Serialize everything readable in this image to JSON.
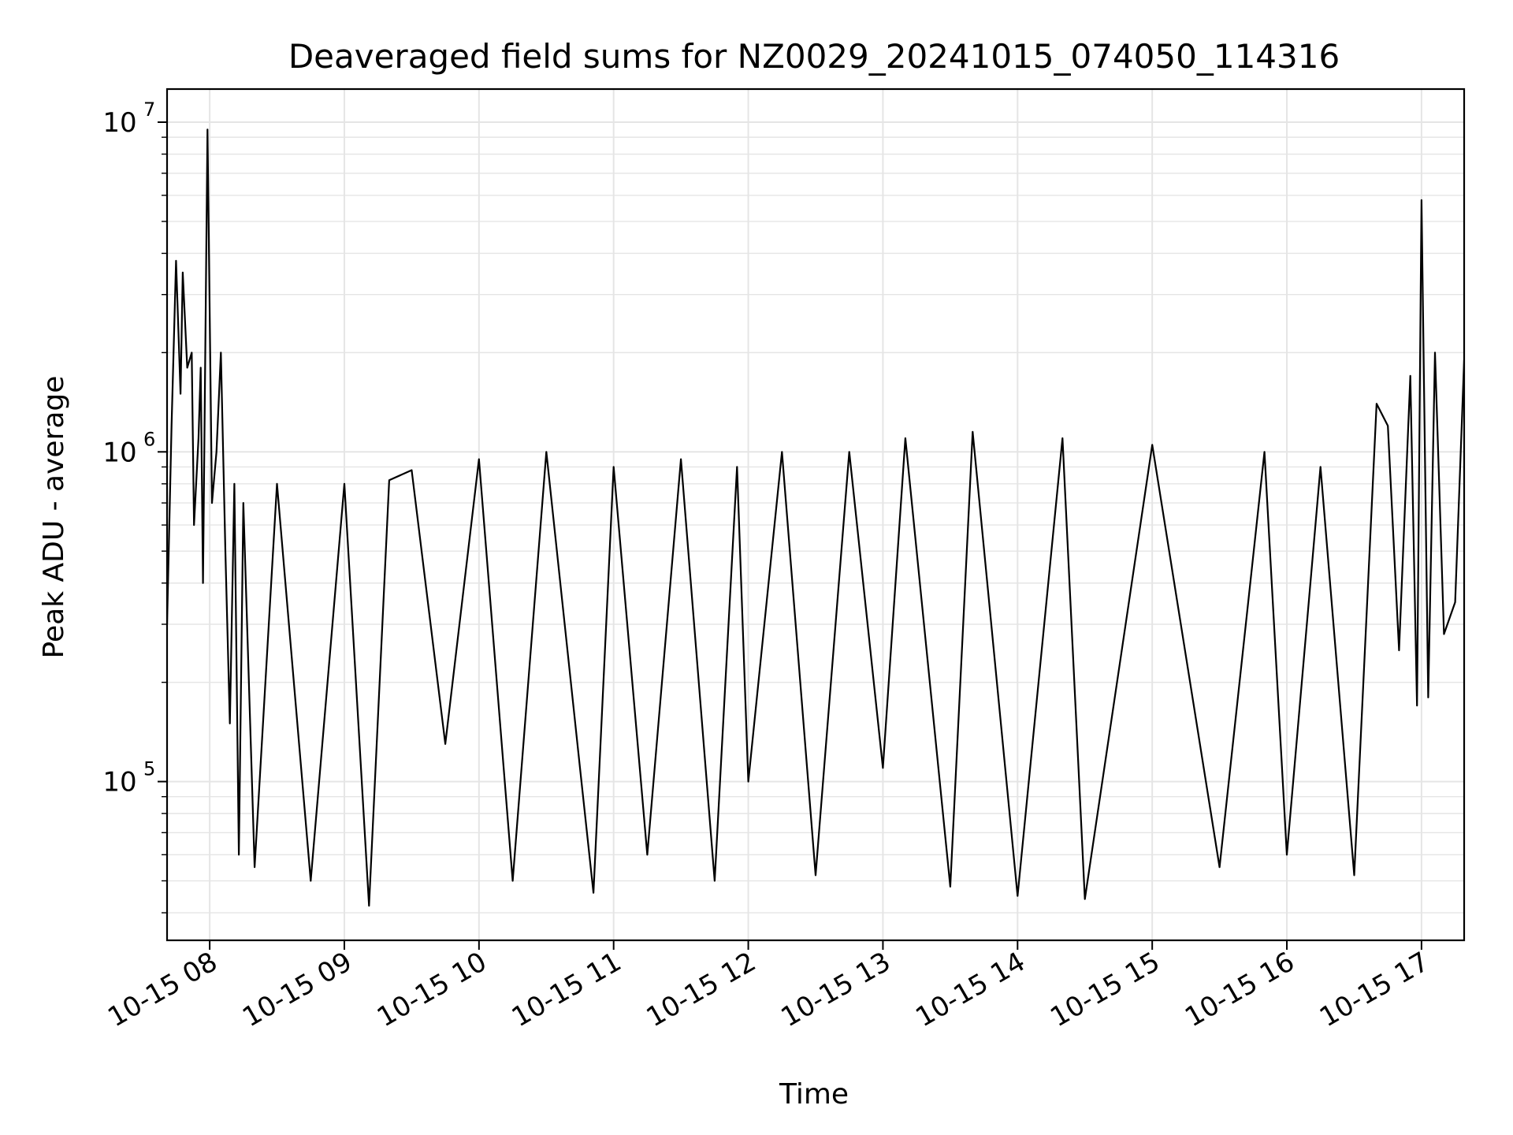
{
  "chart_data": {
    "type": "line",
    "title": "Deaveraged field sums for NZ0029_20241015_074050_114316",
    "xlabel": "Time",
    "ylabel": "Peak ADU - average",
    "yscale": "log",
    "grid": true,
    "line_color": "#000000",
    "grid_color": "#e5e5e5",
    "x_tick_labels": [
      "10-15 08",
      "10-15 09",
      "10-15 10",
      "10-15 11",
      "10-15 12",
      "10-15 13",
      "10-15 14",
      "10-15 15",
      "10-15 16",
      "10-15 17"
    ],
    "x_tick_values": [
      "2024-10-15T08:00",
      "2024-10-15T09:00",
      "2024-10-15T10:00",
      "2024-10-15T11:00",
      "2024-10-15T12:00",
      "2024-10-15T13:00",
      "2024-10-15T14:00",
      "2024-10-15T15:00",
      "2024-10-15T16:00",
      "2024-10-15T17:00"
    ],
    "y_tick_values": [
      100000,
      1000000,
      10000000
    ],
    "y_tick_labels": [
      {
        "base": "10",
        "exp": "5"
      },
      {
        "base": "10",
        "exp": "6"
      },
      {
        "base": "10",
        "exp": "7"
      }
    ],
    "xlim": [
      "2024-10-15T07:41",
      "2024-10-15T17:19"
    ],
    "ylim": [
      33000,
      12600000
    ],
    "series": [
      {
        "x": [
          "2024-10-15T07:41",
          "2024-10-15T07:43",
          "2024-10-15T07:45",
          "2024-10-15T07:47",
          "2024-10-15T07:48",
          "2024-10-15T07:50",
          "2024-10-15T07:52",
          "2024-10-15T07:53",
          "2024-10-15T07:55",
          "2024-10-15T07:56",
          "2024-10-15T07:57",
          "2024-10-15T07:59",
          "2024-10-15T08:01",
          "2024-10-15T08:03",
          "2024-10-15T08:05",
          "2024-10-15T08:07",
          "2024-10-15T08:09",
          "2024-10-15T08:11",
          "2024-10-15T08:13",
          "2024-10-15T08:15",
          "2024-10-15T08:20",
          "2024-10-15T08:30",
          "2024-10-15T08:45",
          "2024-10-15T09:00",
          "2024-10-15T09:11",
          "2024-10-15T09:20",
          "2024-10-15T09:30",
          "2024-10-15T09:45",
          "2024-10-15T10:00",
          "2024-10-15T10:15",
          "2024-10-15T10:30",
          "2024-10-15T10:45",
          "2024-10-15T10:51",
          "2024-10-15T11:00",
          "2024-10-15T11:15",
          "2024-10-15T11:30",
          "2024-10-15T11:45",
          "2024-10-15T11:55",
          "2024-10-15T12:00",
          "2024-10-15T12:15",
          "2024-10-15T12:30",
          "2024-10-15T12:45",
          "2024-10-15T13:00",
          "2024-10-15T13:10",
          "2024-10-15T13:30",
          "2024-10-15T13:40",
          "2024-10-15T14:00",
          "2024-10-15T14:20",
          "2024-10-15T14:30",
          "2024-10-15T15:00",
          "2024-10-15T15:30",
          "2024-10-15T15:50",
          "2024-10-15T16:00",
          "2024-10-15T16:15",
          "2024-10-15T16:30",
          "2024-10-15T16:40",
          "2024-10-15T16:45",
          "2024-10-15T16:50",
          "2024-10-15T16:55",
          "2024-10-15T16:58",
          "2024-10-15T17:00",
          "2024-10-15T17:03",
          "2024-10-15T17:06",
          "2024-10-15T17:10",
          "2024-10-15T17:15",
          "2024-10-15T17:19"
        ],
        "y": [
          300000,
          1200000,
          3800000,
          1500000,
          3500000,
          1800000,
          2000000,
          600000,
          1100000,
          1800000,
          400000,
          9500000,
          700000,
          1000000,
          2000000,
          500000,
          150000,
          800000,
          60000,
          700000,
          55000,
          800000,
          50000,
          800000,
          42000,
          820000,
          880000,
          130000,
          950000,
          50000,
          1000000,
          110000,
          46000,
          900000,
          60000,
          950000,
          50000,
          900000,
          100000,
          1000000,
          52000,
          1000000,
          110000,
          1100000,
          48000,
          1150000,
          45000,
          1100000,
          44000,
          1050000,
          55000,
          1000000,
          60000,
          900000,
          52000,
          1400000,
          1200000,
          250000,
          1700000,
          170000,
          5800000,
          180000,
          2000000,
          280000,
          350000,
          1900000
        ]
      }
    ]
  }
}
